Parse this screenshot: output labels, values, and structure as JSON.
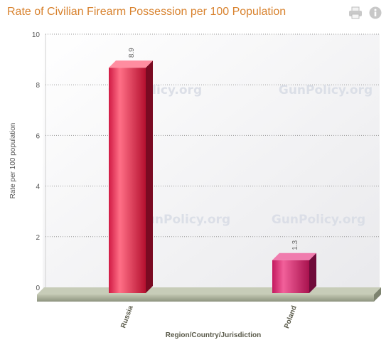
{
  "title": "Rate of Civilian Firearm Possession per 100 Population",
  "toolbar": {
    "print_icon": "printer-icon",
    "info_icon": "info-icon"
  },
  "watermark": "GunPolicy.org",
  "colors": {
    "title": "#d8822e",
    "russia_bar": "#c4143c",
    "poland_bar": "#c81e6a",
    "floor": "#a8ae98",
    "axis_text": "#555555"
  },
  "chart_data": {
    "type": "bar",
    "title": "Rate of Civilian Firearm Possession per 100 Population",
    "xlabel": "Region/Country/Jurisdiction",
    "ylabel": "Rate per 100 population",
    "categories": [
      "Russia",
      "Poland"
    ],
    "values": [
      8.9,
      1.3
    ],
    "data_labels": [
      "8.9",
      "1.3"
    ],
    "ylim": [
      0,
      10
    ],
    "yticks": [
      "0",
      "2",
      "4",
      "6",
      "8",
      "10"
    ],
    "grid": true,
    "legend": "none"
  }
}
